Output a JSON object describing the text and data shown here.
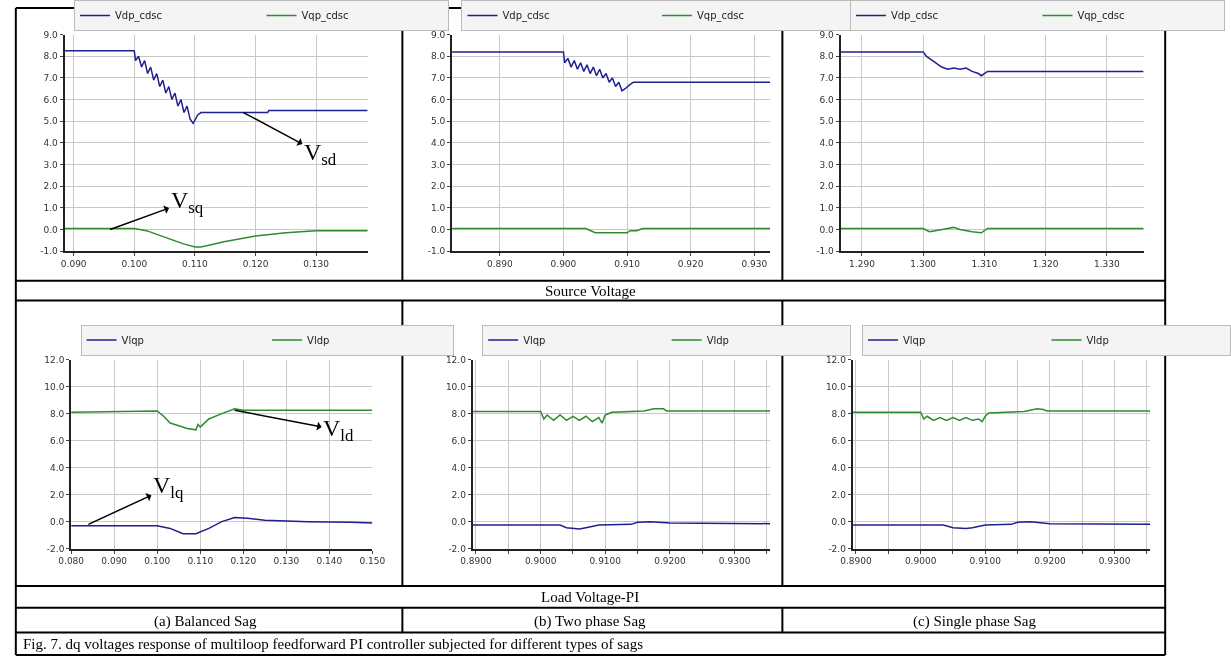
{
  "chart_data": [
    {
      "type": "line",
      "legend": "top",
      "grid": true,
      "marker": "none",
      "line_style": "solid",
      "xlim": [
        0.0885,
        0.1385
      ],
      "xticks": [
        {
          "value": 0.09,
          "label": "0.090"
        },
        {
          "value": 0.1,
          "label": "0.100"
        },
        {
          "value": 0.11,
          "label": "0.110"
        },
        {
          "value": 0.12,
          "label": "0.120"
        },
        {
          "value": 0.13,
          "label": "0.130"
        }
      ],
      "ylim": [
        -1,
        9
      ],
      "yticks": [
        {
          "value": -1,
          "label": "-1.0"
        },
        {
          "value": 0,
          "label": "0.0"
        },
        {
          "value": 1,
          "label": "1.0"
        },
        {
          "value": 2,
          "label": "2.0"
        },
        {
          "value": 3,
          "label": "3.0"
        },
        {
          "value": 4,
          "label": "4.0"
        },
        {
          "value": 5,
          "label": "5.0"
        },
        {
          "value": 6,
          "label": "6.0"
        },
        {
          "value": 7,
          "label": "7.0"
        },
        {
          "value": 8,
          "label": "8.0"
        },
        {
          "value": 9,
          "label": "9.0"
        }
      ],
      "series": [
        {
          "name": "Vdp_cdsc",
          "color": "#1f1f8f",
          "x": [
            0.0885,
            0.1,
            0.1002,
            0.1007,
            0.1012,
            0.1017,
            0.1022,
            0.1027,
            0.1032,
            0.1037,
            0.1042,
            0.1047,
            0.1052,
            0.1057,
            0.1062,
            0.1067,
            0.1072,
            0.1077,
            0.1082,
            0.1087,
            0.1092,
            0.1097,
            0.1105,
            0.111,
            0.122,
            0.1222,
            0.1385
          ],
          "values": [
            8.25,
            8.25,
            7.8,
            8.0,
            7.5,
            7.8,
            7.2,
            7.5,
            6.9,
            7.2,
            6.6,
            6.9,
            6.3,
            6.6,
            6.0,
            6.3,
            5.7,
            6.0,
            5.4,
            5.7,
            5.1,
            4.9,
            5.3,
            5.4,
            5.4,
            5.5,
            5.5
          ]
        },
        {
          "name": "Vqp_cdsc",
          "color": "#2e8b2e",
          "x": [
            0.0885,
            0.1,
            0.102,
            0.105,
            0.108,
            0.11,
            0.111,
            0.115,
            0.12,
            0.125,
            0.13,
            0.1385
          ],
          "values": [
            0.05,
            0.05,
            -0.05,
            -0.35,
            -0.65,
            -0.8,
            -0.8,
            -0.55,
            -0.3,
            -0.15,
            -0.05,
            -0.05
          ]
        }
      ],
      "annotations": [
        {
          "text": "V$_{sd}$",
          "x": 0.118,
          "y": 5.4
        },
        {
          "text": "V$_{sq}$",
          "x": 0.096,
          "y": 0.0
        }
      ]
    },
    {
      "type": "line",
      "legend": "top",
      "grid": true,
      "marker": "none",
      "line_style": "solid",
      "xlim": [
        0.8825,
        0.9325
      ],
      "xticks": [
        {
          "value": 0.89,
          "label": "0.890"
        },
        {
          "value": 0.9,
          "label": "0.900"
        },
        {
          "value": 0.91,
          "label": "0.910"
        },
        {
          "value": 0.92,
          "label": "0.920"
        },
        {
          "value": 0.93,
          "label": "0.930"
        }
      ],
      "ylim": [
        -1,
        9
      ],
      "yticks": [
        {
          "value": -1,
          "label": "-1.0"
        },
        {
          "value": 0,
          "label": "0.0"
        },
        {
          "value": 1,
          "label": "1.0"
        },
        {
          "value": 2,
          "label": "2.0"
        },
        {
          "value": 3,
          "label": "3.0"
        },
        {
          "value": 4,
          "label": "4.0"
        },
        {
          "value": 5,
          "label": "5.0"
        },
        {
          "value": 6,
          "label": "6.0"
        },
        {
          "value": 7,
          "label": "7.0"
        },
        {
          "value": 8,
          "label": "8.0"
        },
        {
          "value": 9,
          "label": "9.0"
        }
      ],
      "series": [
        {
          "name": "Vdp_cdsc",
          "color": "#1f1f8f",
          "x": [
            0.8825,
            0.9,
            0.9002,
            0.9007,
            0.9012,
            0.9017,
            0.9022,
            0.9027,
            0.9032,
            0.9037,
            0.9042,
            0.9047,
            0.9052,
            0.9057,
            0.9062,
            0.9067,
            0.9072,
            0.9077,
            0.9082,
            0.9087,
            0.9092,
            0.9097,
            0.9105,
            0.911,
            0.9325
          ],
          "values": [
            8.2,
            8.2,
            7.7,
            7.9,
            7.5,
            7.8,
            7.4,
            7.7,
            7.3,
            7.6,
            7.2,
            7.5,
            7.1,
            7.4,
            7.0,
            7.2,
            6.8,
            7.0,
            6.6,
            6.8,
            6.4,
            6.5,
            6.7,
            6.8,
            6.8
          ]
        },
        {
          "name": "Vqp_cdsc",
          "color": "#2e8b2e",
          "x": [
            0.8825,
            0.9035,
            0.905,
            0.91,
            0.9105,
            0.9115,
            0.9125,
            0.9325
          ],
          "values": [
            0.05,
            0.05,
            -0.15,
            -0.15,
            -0.05,
            -0.05,
            0.05,
            0.05
          ]
        }
      ],
      "annotations": [
        "Source Voltage"
      ]
    },
    {
      "type": "line",
      "legend": "top",
      "grid": true,
      "marker": "none",
      "line_style": "solid",
      "xlim": [
        1.2865,
        1.336
      ],
      "xticks": [
        {
          "value": 1.29,
          "label": "1.290"
        },
        {
          "value": 1.3,
          "label": "1.300"
        },
        {
          "value": 1.31,
          "label": "1.310"
        },
        {
          "value": 1.32,
          "label": "1.320"
        },
        {
          "value": 1.33,
          "label": "1.330"
        }
      ],
      "ylim": [
        -1,
        9
      ],
      "yticks": [
        {
          "value": -1,
          "label": "-1.0"
        },
        {
          "value": 0,
          "label": "0.0"
        },
        {
          "value": 1,
          "label": "1.0"
        },
        {
          "value": 2,
          "label": "2.0"
        },
        {
          "value": 3,
          "label": "3.0"
        },
        {
          "value": 4,
          "label": "4.0"
        },
        {
          "value": 5,
          "label": "5.0"
        },
        {
          "value": 6,
          "label": "6.0"
        },
        {
          "value": 7,
          "label": "7.0"
        },
        {
          "value": 8,
          "label": "8.0"
        },
        {
          "value": 9,
          "label": "9.0"
        }
      ],
      "series": [
        {
          "name": "Vdp_cdsc",
          "color": "#1f1f8f",
          "x": [
            1.2865,
            1.3,
            1.3005,
            1.301,
            1.302,
            1.303,
            1.304,
            1.305,
            1.306,
            1.307,
            1.308,
            1.309,
            1.3095,
            1.3105,
            1.336
          ],
          "values": [
            8.2,
            8.2,
            8.0,
            7.9,
            7.7,
            7.5,
            7.4,
            7.45,
            7.4,
            7.45,
            7.3,
            7.2,
            7.1,
            7.3,
            7.3
          ]
        },
        {
          "name": "Vqp_cdsc",
          "color": "#2e8b2e",
          "x": [
            1.2865,
            1.3,
            1.301,
            1.302,
            1.304,
            1.305,
            1.306,
            1.308,
            1.3095,
            1.3105,
            1.336
          ],
          "values": [
            0.05,
            0.05,
            -0.1,
            -0.05,
            0.05,
            0.1,
            0.0,
            -0.1,
            -0.15,
            0.05,
            0.05
          ]
        }
      ]
    },
    {
      "type": "line",
      "legend": "top",
      "grid": true,
      "marker": "none",
      "line_style": "solid",
      "xlabel": "(a) Balanced Sag",
      "xlim": [
        0.08,
        0.15
      ],
      "xticks": [
        {
          "value": 0.08,
          "label": "0.080"
        },
        {
          "value": 0.09,
          "label": "0.090"
        },
        {
          "value": 0.1,
          "label": "0.100"
        },
        {
          "value": 0.11,
          "label": "0.110"
        },
        {
          "value": 0.12,
          "label": "0.120"
        },
        {
          "value": 0.13,
          "label": "0.130"
        },
        {
          "value": 0.14,
          "label": "0.140"
        },
        {
          "value": 0.15,
          "label": "0.150"
        }
      ],
      "ylim": [
        -2,
        12
      ],
      "yticks": [
        {
          "value": -2,
          "label": "-2.0"
        },
        {
          "value": 0,
          "label": "0.0"
        },
        {
          "value": 2,
          "label": "2.0"
        },
        {
          "value": 4,
          "label": "4.0"
        },
        {
          "value": 6,
          "label": "6.0"
        },
        {
          "value": 8,
          "label": "8.0"
        },
        {
          "value": 10,
          "label": "10.0"
        },
        {
          "value": 12,
          "label": "12.0"
        }
      ],
      "series": [
        {
          "name": "Vlqp",
          "color": "#1f1f8f",
          "x": [
            0.08,
            0.1,
            0.103,
            0.106,
            0.109,
            0.112,
            0.115,
            0.118,
            0.121,
            0.125,
            0.135,
            0.145,
            0.15
          ],
          "values": [
            -0.3,
            -0.3,
            -0.5,
            -0.9,
            -0.9,
            -0.5,
            0.0,
            0.3,
            0.25,
            0.1,
            0.0,
            -0.05,
            -0.1
          ]
        },
        {
          "name": "Vldp",
          "color": "#2e8b2e",
          "x": [
            0.08,
            0.1,
            0.1015,
            0.103,
            0.105,
            0.107,
            0.109,
            0.1095,
            0.11,
            0.112,
            0.115,
            0.118,
            0.12,
            0.15
          ],
          "values": [
            8.1,
            8.2,
            7.8,
            7.3,
            7.1,
            6.9,
            6.8,
            7.2,
            7.0,
            7.6,
            8.0,
            8.35,
            8.25,
            8.25
          ]
        }
      ],
      "annotations": [
        {
          "text": "V$_{ld}$",
          "x": 0.118,
          "y": 8.25
        },
        {
          "text": "V$_{lq}$",
          "x": 0.084,
          "y": -0.2
        },
        "Fig. 7. dq voltages response of multiloop feedforward PI controller subjected for different types of sags"
      ]
    },
    {
      "type": "line",
      "legend": "top",
      "grid": true,
      "marker": "none",
      "line_style": "solid",
      "xlabel": "(b) Two phase Sag",
      "xlim": [
        0.8895,
        0.9355
      ],
      "xticks": [
        {
          "value": 0.89,
          "label": "0.8900"
        },
        {
          "value": 0.895,
          "label": null
        },
        {
          "value": 0.9,
          "label": "0.9000"
        },
        {
          "value": 0.905,
          "label": null
        },
        {
          "value": 0.91,
          "label": "0.9100"
        },
        {
          "value": 0.915,
          "label": null
        },
        {
          "value": 0.92,
          "label": "0.9200"
        },
        {
          "value": 0.925,
          "label": null
        },
        {
          "value": 0.93,
          "label": "0.9300"
        },
        {
          "value": 0.935,
          "label": null
        }
      ],
      "ylim": [
        -2,
        12
      ],
      "yticks": [
        {
          "value": -2,
          "label": "-2.0"
        },
        {
          "value": 0,
          "label": "0.0"
        },
        {
          "value": 2,
          "label": "2.0"
        },
        {
          "value": 4,
          "label": "4.0"
        },
        {
          "value": 6,
          "label": "6.0"
        },
        {
          "value": 8,
          "label": "8.0"
        },
        {
          "value": 10,
          "label": "10.0"
        },
        {
          "value": 12,
          "label": "12.0"
        }
      ],
      "series": [
        {
          "name": "Vlqp",
          "color": "#1f1f8f",
          "x": [
            0.8895,
            0.903,
            0.904,
            0.906,
            0.907,
            0.909,
            0.914,
            0.915,
            0.917,
            0.92,
            0.9355
          ],
          "values": [
            -0.25,
            -0.25,
            -0.45,
            -0.55,
            -0.45,
            -0.25,
            -0.2,
            -0.05,
            0.0,
            -0.1,
            -0.15
          ]
        },
        {
          "name": "Vldp",
          "color": "#2e8b2e",
          "x": [
            0.8895,
            0.9,
            0.9005,
            0.901,
            0.902,
            0.903,
            0.904,
            0.905,
            0.906,
            0.907,
            0.908,
            0.909,
            0.9095,
            0.91,
            0.911,
            0.916,
            0.9175,
            0.919,
            0.9195,
            0.9355
          ],
          "values": [
            8.15,
            8.15,
            7.6,
            7.9,
            7.5,
            7.9,
            7.5,
            7.8,
            7.5,
            7.8,
            7.4,
            7.7,
            7.3,
            7.9,
            8.1,
            8.2,
            8.35,
            8.35,
            8.2,
            8.2
          ]
        }
      ],
      "annotations": [
        "Load Voltage-PI"
      ]
    },
    {
      "type": "line",
      "legend": "top",
      "grid": true,
      "marker": "none",
      "line_style": "solid",
      "xlabel": "(c) Single phase Sag",
      "xlim": [
        0.8895,
        0.9355
      ],
      "xticks": [
        {
          "value": 0.89,
          "label": "0.8900"
        },
        {
          "value": 0.895,
          "label": null
        },
        {
          "value": 0.9,
          "label": "0.9000"
        },
        {
          "value": 0.905,
          "label": null
        },
        {
          "value": 0.91,
          "label": "0.9100"
        },
        {
          "value": 0.915,
          "label": null
        },
        {
          "value": 0.92,
          "label": "0.9200"
        },
        {
          "value": 0.925,
          "label": null
        },
        {
          "value": 0.93,
          "label": "0.9300"
        },
        {
          "value": 0.935,
          "label": null
        }
      ],
      "ylim": [
        -2,
        12
      ],
      "yticks": [
        {
          "value": -2,
          "label": "-2.0"
        },
        {
          "value": 0,
          "label": "0.0"
        },
        {
          "value": 2,
          "label": "2.0"
        },
        {
          "value": 4,
          "label": "4.0"
        },
        {
          "value": 6,
          "label": "6.0"
        },
        {
          "value": 8,
          "label": "8.0"
        },
        {
          "value": 10,
          "label": "10.0"
        },
        {
          "value": 12,
          "label": "12.0"
        }
      ],
      "series": [
        {
          "name": "Vlqp",
          "color": "#1f1f8f",
          "x": [
            0.8895,
            0.9035,
            0.905,
            0.907,
            0.908,
            0.91,
            0.914,
            0.915,
            0.917,
            0.92,
            0.9355
          ],
          "values": [
            -0.25,
            -0.25,
            -0.45,
            -0.5,
            -0.45,
            -0.25,
            -0.2,
            -0.05,
            0.0,
            -0.15,
            -0.2
          ]
        },
        {
          "name": "Vldp",
          "color": "#2e8b2e",
          "x": [
            0.8895,
            0.9,
            0.9005,
            0.901,
            0.902,
            0.903,
            0.904,
            0.905,
            0.906,
            0.907,
            0.908,
            0.909,
            0.9095,
            0.91,
            0.9105,
            0.916,
            0.918,
            0.919,
            0.9195,
            0.9355
          ],
          "values": [
            8.1,
            8.1,
            7.6,
            7.8,
            7.5,
            7.7,
            7.5,
            7.7,
            7.5,
            7.7,
            7.5,
            7.6,
            7.4,
            7.8,
            8.05,
            8.15,
            8.35,
            8.3,
            8.2,
            8.2
          ]
        }
      ]
    }
  ]
}
